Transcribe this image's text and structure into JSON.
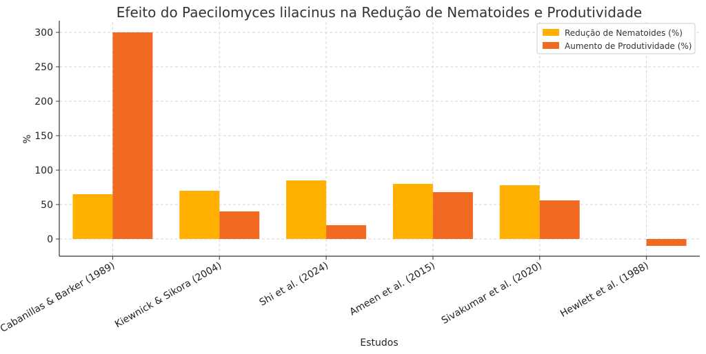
{
  "chart_data": {
    "type": "bar",
    "title": "Efeito do Paecilomyces lilacinus na Redução de Nematoides e Produtividade",
    "xlabel": "Estudos",
    "ylabel": "%",
    "categories": [
      "Cabanillas & Barker (1989)",
      "Kiewnick & Sikora (2004)",
      "Shi et al. (2024)",
      "Ameen et al. (2015)",
      "Sivakumar et al. (2020)",
      "Hewlett et al. (1988)"
    ],
    "series": [
      {
        "name": "Redução de Nematoides (%)",
        "values": [
          65,
          70,
          85,
          80,
          78,
          0
        ],
        "color": "#FFB000"
      },
      {
        "name": "Aumento de Produtividade (%)",
        "values": [
          300,
          40,
          20,
          68,
          56,
          -10
        ],
        "color": "#F26A22"
      }
    ],
    "ylim": [
      -25,
      315
    ],
    "yticks": [
      0,
      50,
      100,
      150,
      200,
      250,
      300
    ],
    "grid": true,
    "legend_position": "top-right"
  }
}
